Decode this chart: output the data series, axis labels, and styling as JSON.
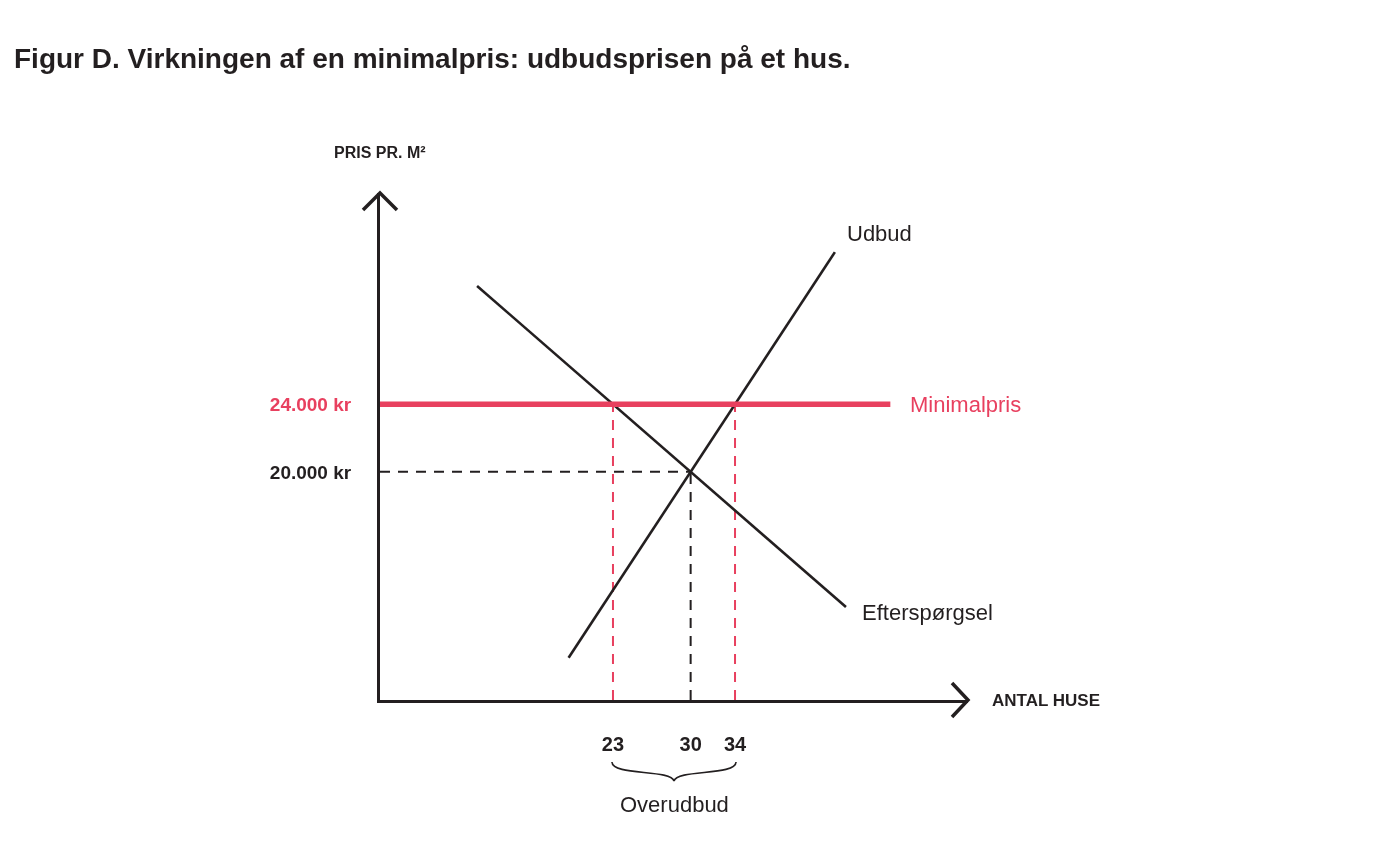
{
  "chart_data": {
    "type": "line",
    "title": "Figur D. Virkningen af en minimalpris: udbudsprisen på et hus.",
    "xlabel": "ANTAL HUSE",
    "ylabel": "PRIS PR. M²",
    "xlim": [
      2,
      55
    ],
    "ylim": [
      6500,
      36500
    ],
    "xticks": [
      23,
      30,
      34
    ],
    "yticks": [
      {
        "value": 20000,
        "label": "20.000 kr"
      },
      {
        "value": 24000,
        "label": "24.000 kr"
      }
    ],
    "series": [
      {
        "name": "Udbud",
        "color": "#231f20",
        "x": [
          19,
          43
        ],
        "values": [
          9000,
          33000
        ]
      },
      {
        "name": "Efterspørgsel",
        "color": "#231f20",
        "x": [
          10.75,
          44
        ],
        "values": [
          31000,
          12000
        ]
      },
      {
        "name": "Minimalpris",
        "color": "#e8405f",
        "x": [
          2,
          48
        ],
        "values": [
          24000,
          24000
        ]
      },
      {
        "color": "#e8405f",
        "line_style": "dashed",
        "x": [
          23,
          23
        ],
        "values": [
          6500,
          24000
        ]
      },
      {
        "color": "#e8405f",
        "line_style": "dashed",
        "x": [
          34,
          34
        ],
        "values": [
          6500,
          24000
        ]
      },
      {
        "color": "#231f20",
        "line_style": "dashed",
        "x": [
          2,
          30
        ],
        "values": [
          20000,
          20000
        ]
      },
      {
        "color": "#231f20",
        "line_style": "dashed",
        "x": [
          30,
          30
        ],
        "values": [
          6500,
          20000
        ]
      }
    ],
    "annotations": [
      "Overudbud"
    ],
    "grid": false,
    "legend": false
  }
}
